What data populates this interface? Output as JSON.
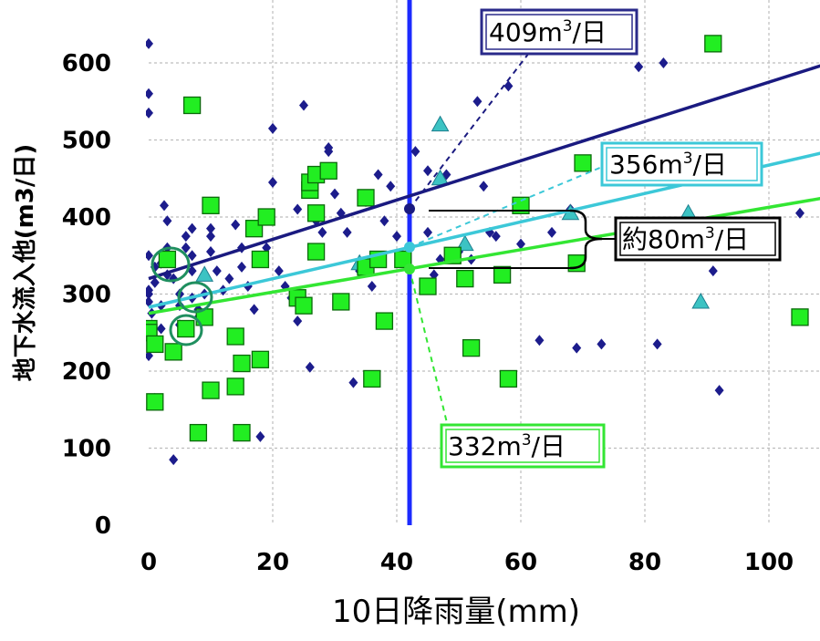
{
  "chart_data": {
    "type": "scatter",
    "title": "",
    "xlabel": "10日降雨量(mm)",
    "ylabel": "地下水流入他(m3/日)",
    "xlim": [
      0,
      109
    ],
    "ylim": [
      0,
      650
    ],
    "grid": true,
    "x_ticks": [
      "0",
      "20",
      "40",
      "60",
      "80",
      "100"
    ],
    "y_ticks": [
      "0",
      "100",
      "200",
      "300",
      "400",
      "500",
      "600"
    ],
    "reference_x": 42,
    "series": [
      {
        "marker": "diamond",
        "color": "#1c1c8c",
        "points": [
          [
            0,
            625
          ],
          [
            0,
            560
          ],
          [
            0,
            535
          ],
          [
            0,
            350
          ],
          [
            0,
            305
          ],
          [
            0,
            300
          ],
          [
            0,
            290
          ],
          [
            0.5,
            275
          ],
          [
            0.5,
            260
          ],
          [
            0.5,
            245
          ],
          [
            0,
            220
          ],
          [
            1,
            335
          ],
          [
            1,
            315
          ],
          [
            2,
            340
          ],
          [
            2,
            285
          ],
          [
            2,
            255
          ],
          [
            2.5,
            415
          ],
          [
            3,
            395
          ],
          [
            3,
            360
          ],
          [
            3,
            325
          ],
          [
            4,
            85
          ],
          [
            4,
            320
          ],
          [
            5,
            300
          ],
          [
            5,
            285
          ],
          [
            5,
            260
          ],
          [
            6,
            375
          ],
          [
            6,
            360
          ],
          [
            7,
            385
          ],
          [
            7,
            350
          ],
          [
            7,
            330
          ],
          [
            7,
            295
          ],
          [
            8,
            280
          ],
          [
            8,
            270
          ],
          [
            9,
            300
          ],
          [
            10,
            385
          ],
          [
            10,
            375
          ],
          [
            10,
            355
          ],
          [
            11,
            330
          ],
          [
            12,
            305
          ],
          [
            13,
            320
          ],
          [
            14,
            390
          ],
          [
            15,
            360
          ],
          [
            15,
            335
          ],
          [
            16,
            310
          ],
          [
            17,
            280
          ],
          [
            18,
            115
          ],
          [
            19,
            360
          ],
          [
            20,
            515
          ],
          [
            20,
            445
          ],
          [
            21,
            330
          ],
          [
            22,
            310
          ],
          [
            23,
            295
          ],
          [
            24,
            410
          ],
          [
            24,
            265
          ],
          [
            25,
            545
          ],
          [
            26,
            205
          ],
          [
            27,
            395
          ],
          [
            28,
            380
          ],
          [
            29,
            490
          ],
          [
            29,
            485
          ],
          [
            30,
            430
          ],
          [
            31,
            405
          ],
          [
            32,
            380
          ],
          [
            33,
            185
          ],
          [
            34,
            330
          ],
          [
            35,
            420
          ],
          [
            35,
            330
          ],
          [
            36,
            310
          ],
          [
            37,
            455
          ],
          [
            38,
            395
          ],
          [
            39,
            440
          ],
          [
            40,
            375
          ],
          [
            41,
            350
          ],
          [
            42,
            410
          ],
          [
            43,
            485
          ],
          [
            45,
            460
          ],
          [
            45,
            380
          ],
          [
            46,
            325
          ],
          [
            47,
            345
          ],
          [
            48,
            455
          ],
          [
            50,
            355
          ],
          [
            52,
            345
          ],
          [
            53,
            550
          ],
          [
            54,
            440
          ],
          [
            55,
            380
          ],
          [
            56,
            375
          ],
          [
            58,
            570
          ],
          [
            60,
            365
          ],
          [
            63,
            240
          ],
          [
            65,
            380
          ],
          [
            68,
            410
          ],
          [
            69,
            230
          ],
          [
            73,
            235
          ],
          [
            79,
            595
          ],
          [
            82,
            235
          ],
          [
            83,
            600
          ],
          [
            91,
            330
          ],
          [
            92,
            175
          ],
          [
            105,
            405
          ]
        ]
      },
      {
        "marker": "triangle",
        "color": "#3cc3c3",
        "points": [
          [
            1,
            160
          ],
          [
            9,
            325
          ],
          [
            34,
            340
          ],
          [
            47,
            520
          ],
          [
            47,
            450
          ],
          [
            51,
            365
          ],
          [
            68,
            405
          ],
          [
            87,
            405
          ],
          [
            89,
            290
          ]
        ]
      },
      {
        "marker": "square",
        "color": "#22ee22",
        "points": [
          [
            0,
            255
          ],
          [
            0,
            250
          ],
          [
            1,
            235
          ],
          [
            1,
            160
          ],
          [
            3,
            345
          ],
          [
            4,
            225
          ],
          [
            6,
            255
          ],
          [
            7,
            545
          ],
          [
            8,
            120
          ],
          [
            9,
            270
          ],
          [
            10,
            415
          ],
          [
            10,
            175
          ],
          [
            14,
            245
          ],
          [
            14,
            180
          ],
          [
            15,
            210
          ],
          [
            15,
            120
          ],
          [
            17,
            385
          ],
          [
            18,
            345
          ],
          [
            18,
            215
          ],
          [
            19,
            400
          ],
          [
            24,
            295
          ],
          [
            25,
            285
          ],
          [
            26,
            435
          ],
          [
            26,
            445
          ],
          [
            27,
            455
          ],
          [
            27,
            405
          ],
          [
            27,
            355
          ],
          [
            29,
            460
          ],
          [
            31,
            290
          ],
          [
            35,
            425
          ],
          [
            35,
            335
          ],
          [
            36,
            190
          ],
          [
            37,
            345
          ],
          [
            38,
            265
          ],
          [
            41,
            345
          ],
          [
            45,
            310
          ],
          [
            49,
            350
          ],
          [
            51,
            320
          ],
          [
            52,
            230
          ],
          [
            57,
            325
          ],
          [
            58,
            190
          ],
          [
            60,
            415
          ],
          [
            70,
            470
          ],
          [
            69,
            340
          ],
          [
            83,
            380
          ],
          [
            91,
            625
          ],
          [
            105,
            270
          ]
        ]
      }
    ],
    "trend_lines": [
      {
        "color": "#1a1a80",
        "y_at_0": 320,
        "y_at_end": 598
      },
      {
        "color": "#3cc8d8",
        "y_at_0": 283,
        "y_at_end": 484
      },
      {
        "color": "#33e633",
        "y_at_0": 275,
        "y_at_end": 425
      }
    ],
    "callouts": {
      "top": {
        "prefix": "409m",
        "sup": "3",
        "suffix": "/日"
      },
      "mid": {
        "prefix": "356m",
        "sup": "3",
        "suffix": "/日"
      },
      "low": {
        "prefix": "332m",
        "sup": "3",
        "suffix": "/日"
      },
      "diff": {
        "prefix": "約80m",
        "sup": "3",
        "suffix": "/日"
      }
    }
  }
}
